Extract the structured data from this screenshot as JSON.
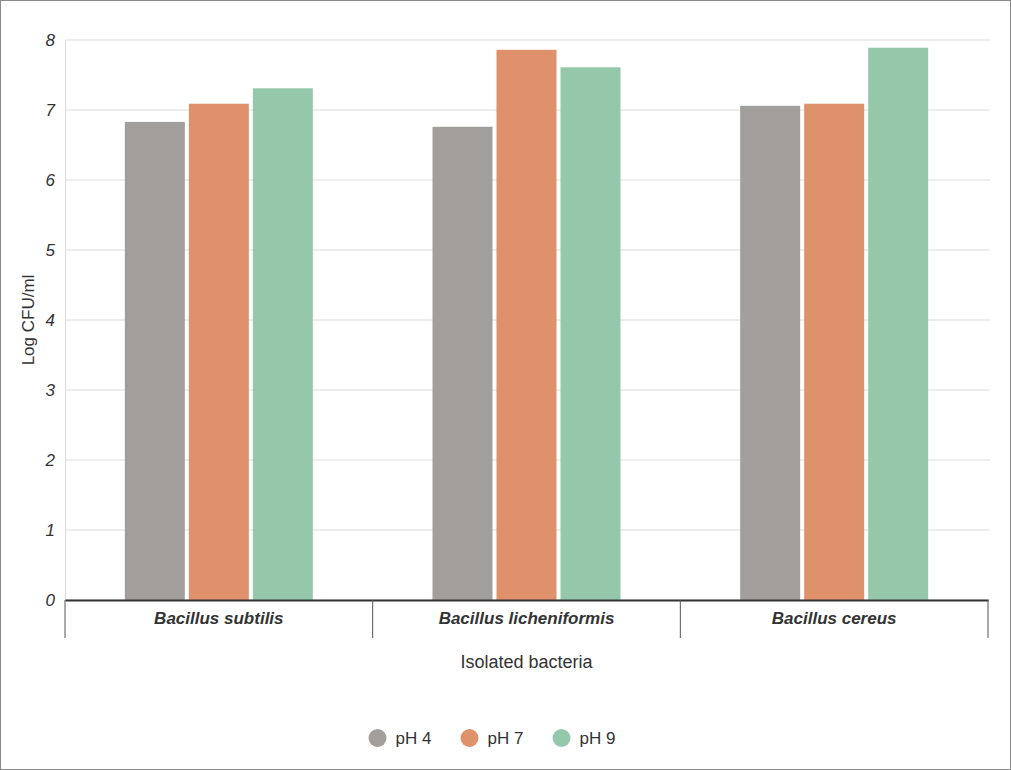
{
  "chart_data": {
    "type": "bar",
    "x_label": "Isolated bacteria",
    "y_label": "Log CFU/ml",
    "categories": [
      "Bacillus subtilis",
      "Bacillus licheniformis",
      "Bacillus cereus"
    ],
    "series": [
      {
        "name": "pH 4",
        "color": "#a19e9b",
        "values": [
          6.83,
          6.76,
          7.06
        ]
      },
      {
        "name": "pH 7",
        "color": "#df916c",
        "values": [
          7.09,
          7.86,
          7.09
        ]
      },
      {
        "name": "pH 9",
        "color": "#95c8ab",
        "values": [
          7.31,
          7.61,
          7.89
        ]
      }
    ],
    "ylim": [
      0,
      8
    ],
    "yticks": [
      0,
      1,
      2,
      3,
      4,
      5,
      6,
      7,
      8
    ],
    "grid": true,
    "legend": "bottom"
  }
}
